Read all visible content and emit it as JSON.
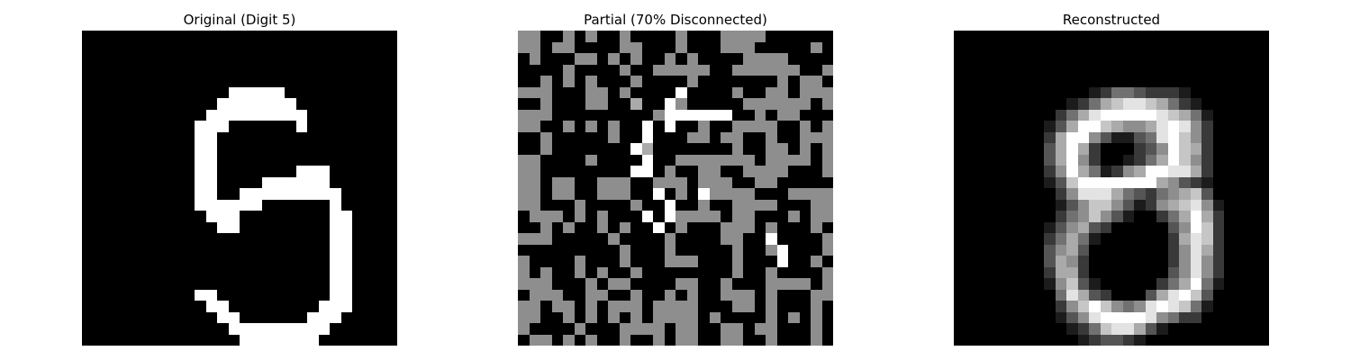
{
  "panels": [
    {
      "title": "Original (Digit 5)",
      "rows": [
        "0000000000000000000000000000",
        "0000000000000000000000000000",
        "0000000000000000000000000000",
        "0000000000000000000000000000",
        "0000000000000000000000000000",
        "0000000000000999990000000000",
        "0000000000009999999000000000",
        "0000000000099999999900000000",
        "0000000000999000000900000000",
        "0000000000990000000000000000",
        "0000000000990000000000000000",
        "0000000000990000000000000000",
        "0000000000990000000999000000",
        "0000000000990000999999000000",
        "0000000000990099999999900000",
        "0000000000999999000000900000",
        "0000000000099900000000990000",
        "0000000000009900000000990000",
        "0000000000000000000000990000",
        "0000000000000000000000990000",
        "0000000000000000000000990000",
        "0000000000000000000000990000",
        "0000000000000000000000990000",
        "0000000000990000000000990000",
        "0000000000099000000009990000",
        "0000000000009900000099900000",
        "0000000000000999999999000000",
        "0000000000000099999990000000"
      ]
    },
    {
      "title": "Partial (70% Disconnected)",
      "rows": [
        "5500505005000050005555000000",
        "5505500005500050005550000050",
        "0500055050500505000055550000",
        "0000500005005555500555555005",
        "0050505000500005000000050550",
        "5550005505000090000500550555",
        "0050005500600950000055555505",
        "5550000000005999999005055000",
        "5500505050090900500555500505",
        "0050000050090005505500500555",
        "0050000000960000000500550505",
        "5500005000090055555550555505",
        "5500000000990500550055550005",
        "5505500555005550555005500000",
        "5505500555009050955550005555",
        "5500050000500900500555500055",
        "0555050500090955550550005055",
        "0050500505009050005550500050",
        "5550000050000500005500900005",
        "0000000005000500000500590005",
        "5000050005000555000500090050",
        "5050050500500000000500500005",
        "5550005055000055005000555505",
        "0555005500500505005550500055",
        "5505505055505555000550500050",
        "5500505050505555050000505050",
        "5000050005555055005505500050",
        "0550505005005055005500500050"
      ]
    },
    {
      "title": "Reconstructed",
      "rows": [
        "0000000000000000000000000000",
        "0000000000000000000000000000",
        "0000000000000000000000000000",
        "0000000000000000000000000000",
        "0000000000000000000000000000",
        "0000000000001244322210000000",
        "0000000000124678876421000000",
        "0000000002468999998764100000",
        "0000000013699765568985200000",
        "0000000026995311348975200000",
        "0000000036962000235976200000",
        "0000000036952001246975200000",
        "0000000025964125699886200000",
        "0000000013799999996532100000",
        "0000000002588864324567300000",
        "0000000001357753125678510000",
        "0000000002457531002469620000",
        "0000000013563200000359720000",
        "0000000024641000000268720000",
        "0000000035630000000258620000",
        "0000000036520000000258520000",
        "0000000026620000000358520000",
        "0000000015731000002469410000",
        "0000000004863200036897300000",
        "0000000002579754589874100000",
        "0000000001358999985422000000",
        "0000000000124788631000000000",
        "0000000000012332100000000000"
      ]
    }
  ]
}
